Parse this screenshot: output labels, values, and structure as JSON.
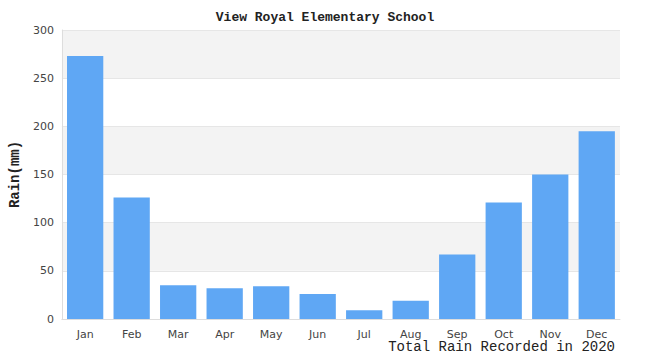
{
  "chart_data": {
    "type": "bar",
    "title": "View Royal Elementary School",
    "xlabel": "Total Rain Recorded in 2020",
    "ylabel": "Rain(mm)",
    "categories": [
      "Jan",
      "Feb",
      "Mar",
      "Apr",
      "May",
      "Jun",
      "Jul",
      "Aug",
      "Sep",
      "Oct",
      "Nov",
      "Dec"
    ],
    "values": [
      273,
      126,
      35,
      32,
      34,
      26,
      9,
      19,
      67,
      121,
      150,
      195
    ],
    "color": "#5fa7f4",
    "ylim": [
      0,
      300
    ],
    "yticks": [
      0,
      50,
      100,
      150,
      200,
      250,
      300
    ],
    "grid": true
  }
}
